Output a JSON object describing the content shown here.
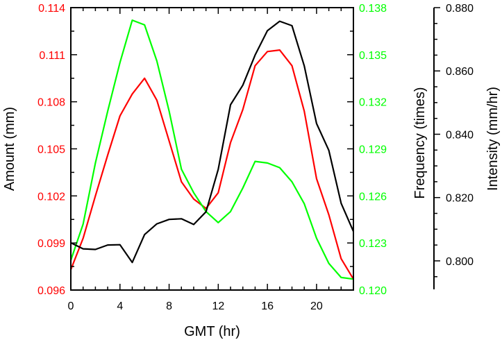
{
  "chart_data": {
    "type": "line",
    "xlabel": "GMT (hr)",
    "xlim": [
      0,
      23
    ],
    "xticks": [
      "0",
      "4",
      "8",
      "12",
      "16",
      "20"
    ],
    "x": [
      0,
      1,
      2,
      3,
      4,
      5,
      6,
      7,
      8,
      9,
      10,
      11,
      12,
      13,
      14,
      15,
      16,
      17,
      18,
      19,
      20,
      21,
      22,
      23
    ],
    "axes": {
      "amount": {
        "label": "Amount (mm)",
        "color": "#ff0000",
        "ylim": [
          0.096,
          0.114
        ],
        "ticks": [
          "0.096",
          "0.099",
          "0.102",
          "0.105",
          "0.108",
          "0.111",
          "0.114"
        ]
      },
      "frequency": {
        "label": "Frequency (times)",
        "color": "#00ff00",
        "ylim": [
          0.12,
          0.138
        ],
        "ticks": [
          "0.120",
          "0.123",
          "0.126",
          "0.129",
          "0.132",
          "0.135",
          "0.138"
        ]
      },
      "intensity": {
        "label": "Intensity (mm/hr)",
        "color": "#000000",
        "ylim": [
          0.791,
          0.88
        ],
        "ticks": [
          "0.800",
          "0.820",
          "0.840",
          "0.860",
          "0.880"
        ]
      }
    },
    "series": [
      {
        "axis": "amount",
        "color": "#ff0000",
        "values": [
          0.0973,
          0.0993,
          0.102,
          0.1046,
          0.1071,
          0.1085,
          0.1095,
          0.1081,
          0.1055,
          0.1029,
          0.1018,
          0.1012,
          0.1022,
          0.1054,
          0.1075,
          0.1103,
          0.1112,
          0.1113,
          0.1103,
          0.1074,
          0.1031,
          0.1008,
          0.098,
          0.0967
        ]
      },
      {
        "axis": "frequency",
        "color": "#00ff00",
        "values": [
          0.1219,
          0.1242,
          0.1281,
          0.1314,
          0.1345,
          0.1372,
          0.1369,
          0.1346,
          0.1314,
          0.1277,
          0.1262,
          0.125,
          0.1243,
          0.125,
          0.1265,
          0.1282,
          0.1281,
          0.1278,
          0.1269,
          0.1255,
          0.1233,
          0.1217,
          0.1208,
          0.1207
        ]
      },
      {
        "axis": "intensity",
        "color": "#000000",
        "values": [
          0.8057,
          0.8038,
          0.8036,
          0.805,
          0.8051,
          0.7995,
          0.8083,
          0.8117,
          0.8131,
          0.8133,
          0.8115,
          0.8155,
          0.8289,
          0.8493,
          0.8555,
          0.865,
          0.8727,
          0.8757,
          0.8743,
          0.8616,
          0.8434,
          0.8349,
          0.8182,
          0.8093
        ]
      }
    ],
    "grid": false,
    "legend": "none"
  }
}
